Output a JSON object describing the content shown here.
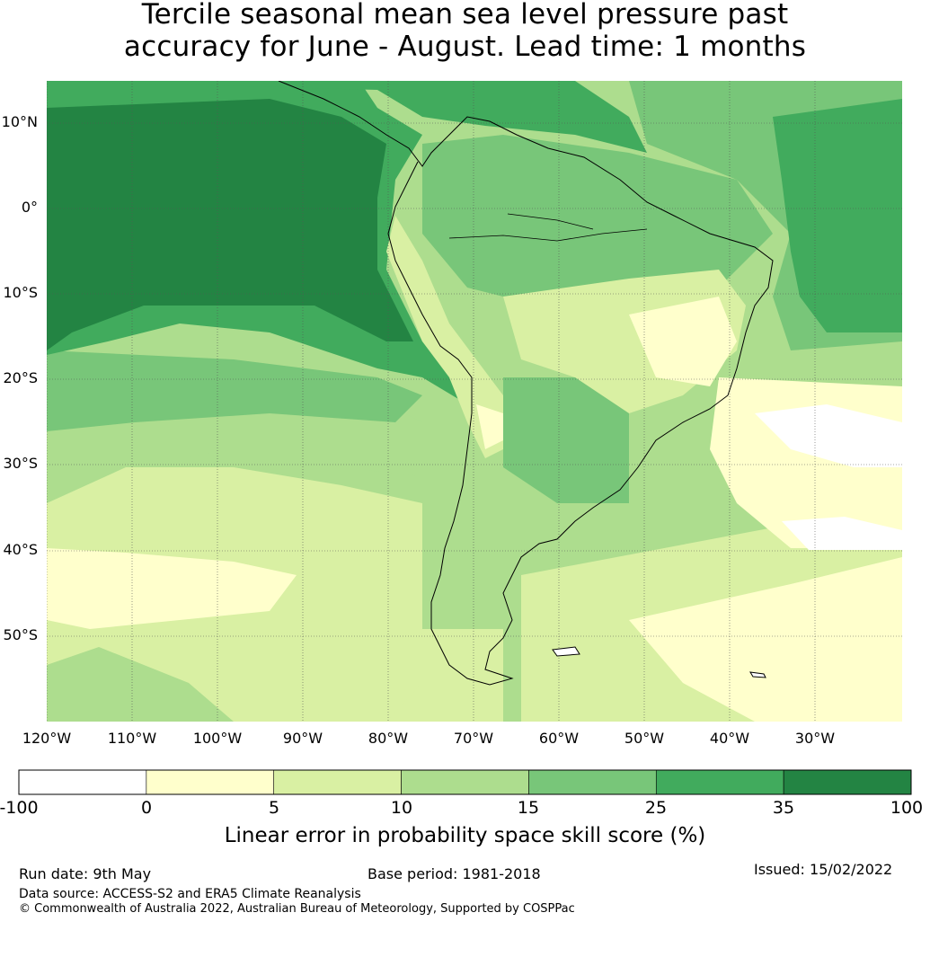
{
  "title_line1": "Tercile seasonal mean sea level pressure past",
  "title_line2": "accuracy for June - August. Lead time: 1 months",
  "lat_labels": [
    "10°N",
    "0°",
    "10°S",
    "20°S",
    "30°S",
    "40°S",
    "50°S"
  ],
  "lon_labels": [
    "120°W",
    "110°W",
    "100°W",
    "90°W",
    "80°W",
    "70°W",
    "60°W",
    "50°W",
    "40°W",
    "30°W"
  ],
  "colorbar": {
    "ticks": [
      "-100",
      "0",
      "5",
      "10",
      "15",
      "25",
      "35",
      "100"
    ],
    "colors": [
      "#ffffff",
      "#ffffcc",
      "#d9f0a3",
      "#addd8e",
      "#78c679",
      "#41ab5d",
      "#238443"
    ],
    "title": "Linear error in probability space skill score (%)"
  },
  "footer": {
    "run_date": "Run date: 9th May",
    "base_period": "Base period: 1981-2018",
    "issued": "Issued: 15/02/2022",
    "data_source": "Data source: ACCESS-S2 and ERA5 Climate Reanalysis",
    "copyright": "© Commonwealth of Australia 2022, Australian Bureau of Meteorology, Supported by COSPPac"
  }
}
